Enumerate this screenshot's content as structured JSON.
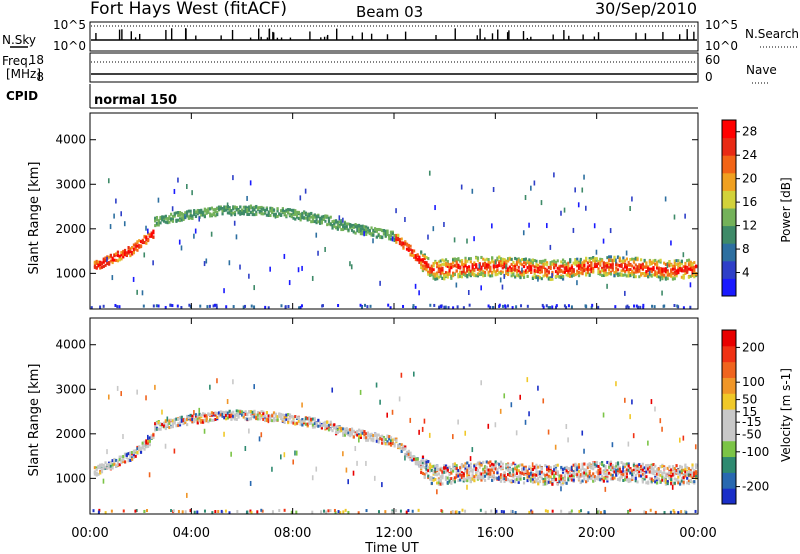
{
  "header": {
    "title": "Fort Hays West (fitACF)",
    "beam": "Beam 03",
    "date": "30/Sep/2010"
  },
  "noise_panel": {
    "left_label": "N.Sky",
    "left_ticks": [
      "10^5",
      "10^0"
    ],
    "right_ticks": [
      "10^5",
      "10^0"
    ],
    "right_label": "N.Search"
  },
  "freq_panel": {
    "left_label_1": "Freq.",
    "left_label_2": "[MHz]",
    "left_ticks": [
      "18",
      "8"
    ],
    "right_ticks": [
      "60",
      "0"
    ],
    "right_label": "Nave",
    "cpid_label": "CPID",
    "cpid_value": "normal 150"
  },
  "chart_data": [
    {
      "type": "heatmap",
      "name": "power",
      "xlabel": "Time UT",
      "ylabel": "Slant Range [km]",
      "x_ticks": [
        "00:00",
        "04:00",
        "08:00",
        "12:00",
        "16:00",
        "20:00",
        "00:00"
      ],
      "xlim_hours": [
        0,
        24
      ],
      "y_ticks": [
        1000,
        2000,
        3000,
        4000
      ],
      "ylim": [
        200,
        4600
      ],
      "colorbar": {
        "label": "Power [dB]",
        "ticks": [
          4,
          8,
          12,
          16,
          20,
          24,
          28
        ],
        "range": [
          0,
          30
        ],
        "colors": [
          "#1a1aff",
          "#2e3fc8",
          "#2d6fa0",
          "#3e8a68",
          "#74b25a",
          "#d2d23a",
          "#f0a020",
          "#f26416",
          "#e82a14",
          "#ff0000"
        ]
      }
    },
    {
      "type": "heatmap",
      "name": "velocity",
      "xlabel": "Time UT",
      "ylabel": "Slant Range [km]",
      "x_ticks": [
        "00:00",
        "04:00",
        "08:00",
        "12:00",
        "16:00",
        "20:00",
        "00:00"
      ],
      "xlim_hours": [
        0,
        24
      ],
      "y_ticks": [
        1000,
        2000,
        3000,
        4000
      ],
      "ylim": [
        200,
        4600
      ],
      "colorbar": {
        "label": "Velocity [m s-1]",
        "ticks": [
          200,
          100,
          50,
          15,
          -15,
          -50,
          -100,
          -200
        ],
        "range": [
          -250,
          250
        ],
        "colors": [
          "#1a2fc8",
          "#2868b0",
          "#2e8a70",
          "#7bc446",
          "#c8c8c8",
          "#c8c8c8",
          "#f0c828",
          "#f09628",
          "#f0641e",
          "#f03214",
          "#e80000"
        ]
      }
    }
  ]
}
